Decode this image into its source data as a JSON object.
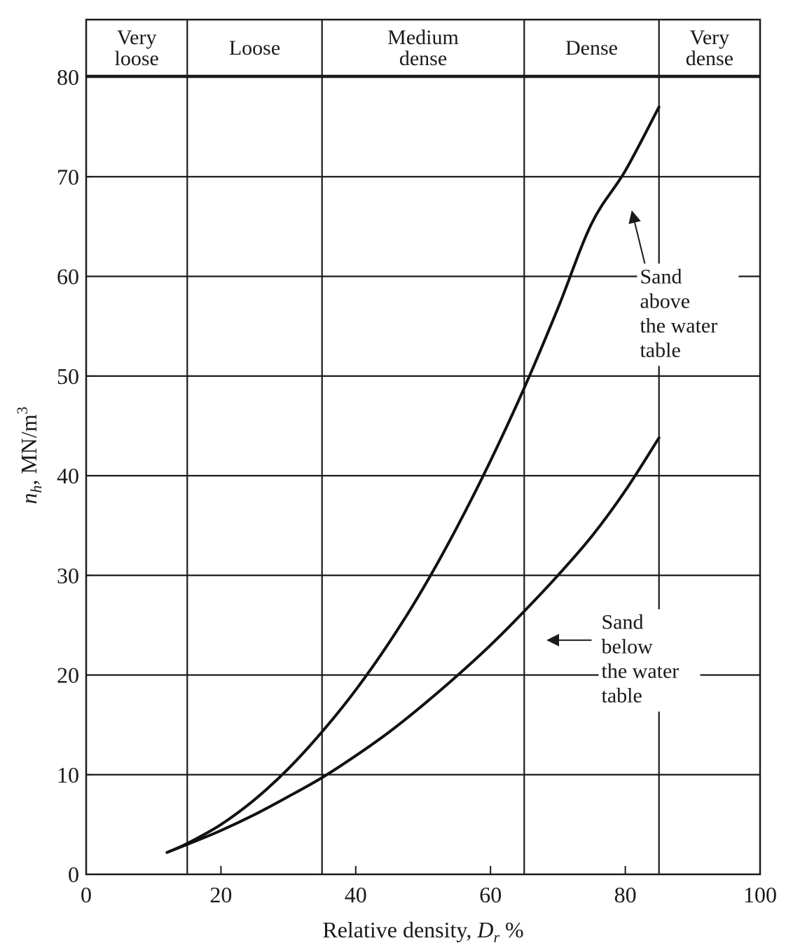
{
  "chart_data": {
    "type": "line",
    "xlabel": {
      "main": "Relative density, ",
      "symbol": "D",
      "sub": "r",
      "unit": " %"
    },
    "ylabel": {
      "symbol": "n",
      "sub": "h",
      "main": ", MN/m",
      "sup": "3"
    },
    "xlim": [
      0,
      100
    ],
    "ylim": [
      0,
      80
    ],
    "xticks": [
      0,
      20,
      40,
      60,
      80,
      100
    ],
    "yticks": [
      0,
      10,
      20,
      30,
      40,
      50,
      60,
      70,
      80
    ],
    "grid": "horizontal",
    "density_bands": [
      {
        "lines": [
          "Very",
          "loose"
        ],
        "from": 0,
        "to": 15
      },
      {
        "lines": [
          "Loose"
        ],
        "from": 15,
        "to": 35
      },
      {
        "lines": [
          "Medium",
          "dense"
        ],
        "from": 35,
        "to": 65
      },
      {
        "lines": [
          "Dense"
        ],
        "from": 65,
        "to": 85
      },
      {
        "lines": [
          "Very",
          "dense"
        ],
        "from": 85,
        "to": 100
      }
    ],
    "series": [
      {
        "key": "above",
        "x": [
          12,
          15,
          20,
          25,
          30,
          35,
          40,
          45,
          50,
          55,
          60,
          65,
          70,
          75,
          80,
          85
        ],
        "y": [
          2.2,
          3.1,
          5.0,
          7.5,
          10.6,
          14.3,
          18.5,
          23.3,
          28.7,
          34.8,
          41.5,
          48.8,
          56.8,
          65.3,
          70.6,
          77.0
        ]
      },
      {
        "key": "below",
        "x": [
          12,
          15,
          20,
          25,
          30,
          35,
          40,
          45,
          50,
          55,
          60,
          65,
          70,
          75,
          80,
          85
        ],
        "y": [
          2.2,
          3.0,
          4.4,
          6.0,
          7.8,
          9.7,
          11.9,
          14.3,
          17.0,
          19.9,
          23.0,
          26.4,
          30.0,
          33.9,
          38.5,
          43.8
        ]
      }
    ],
    "annotations": [
      {
        "series": "above",
        "lines": [
          "Sand",
          "above",
          "the water",
          "table"
        ],
        "x": 81.0,
        "y": 66.5,
        "arrow_from": [
          83.0,
          61.0
        ]
      },
      {
        "series": "below",
        "lines": [
          "Sand",
          "below",
          "the water",
          "table"
        ],
        "x": 68.5,
        "y": 23.5,
        "arrow_from": [
          75.0,
          23.5
        ]
      }
    ]
  }
}
